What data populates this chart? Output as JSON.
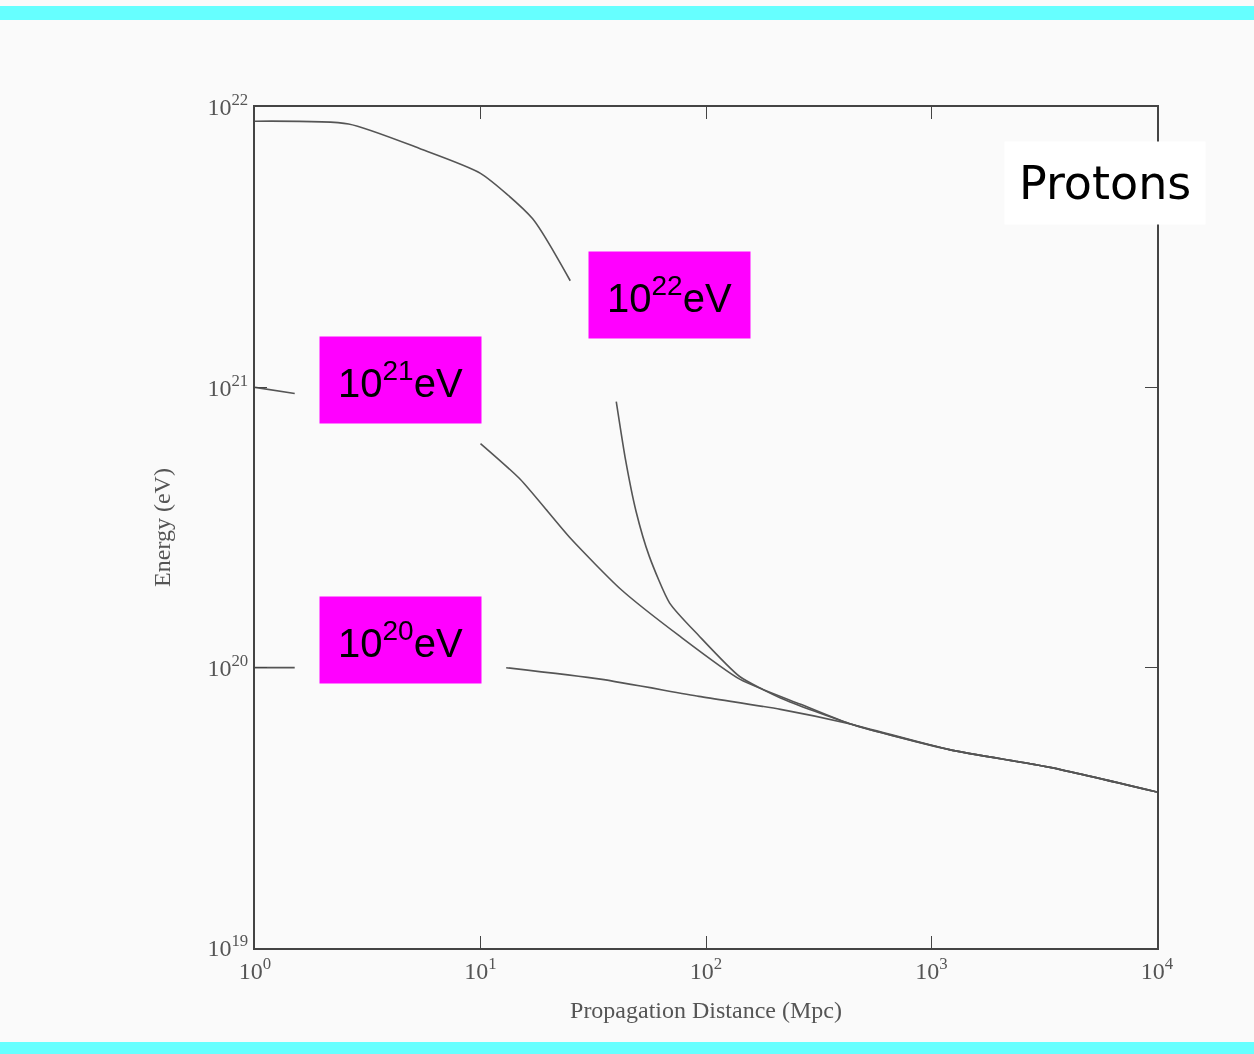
{
  "chart_data": {
    "type": "line",
    "title": "Protons",
    "xlabel": "Propagation Distance (Mpc)",
    "ylabel": "Energy (eV)",
    "log": "xy",
    "grid": false,
    "legend": false,
    "marker": "none",
    "line_style": "solid",
    "xlim": [
      1,
      10000
    ],
    "xticks": [
      {
        "value": 1,
        "label": "10$^{0}$"
      },
      {
        "value": 10,
        "label": "10$^{1}$"
      },
      {
        "value": 100,
        "label": "10$^{2}$"
      },
      {
        "value": 1000,
        "label": "10$^{3}$"
      },
      {
        "value": 10000,
        "label": "10$^{4}$"
      }
    ],
    "ylim": [
      1e+19,
      1e+22
    ],
    "yticks": [
      {
        "value": 1e+19,
        "label": "10$^{19}$"
      },
      {
        "value": 1e+20,
        "label": "10$^{20}$"
      },
      {
        "value": 1e+21,
        "label": "10$^{21}$"
      },
      {
        "value": 1e+22,
        "label": "10$^{22}$"
      }
    ],
    "series": [
      {
        "name": "10$^{22}$eV",
        "color": "#555555",
        "x": [
          1,
          2.6,
          5.4,
          10,
          17,
          25,
          34,
          40,
          44,
          49,
          56,
          69,
          93,
          141,
          214,
          437,
          1200,
          3400,
          10000
        ],
        "values": [
          8.9e+21,
          8.7e+21,
          7.1e+21,
          5.8e+21,
          4e+21,
          2.4e+21,
          null,
          8.9e+20,
          5.5e+20,
          3.6e+20,
          2.5e+20,
          1.7e+20,
          1.3e+20,
          9.3e+19,
          7.8e+19,
          6.3e+19,
          5.1e+19,
          4.4e+19,
          3.6e+19
        ]
      },
      {
        "name": "10$^{21}$eV",
        "color": "#555555",
        "x": [
          1,
          1.5,
          2.6,
          6,
          10,
          15,
          25,
          42,
          76,
          141,
          263,
          437,
          1200,
          3400,
          10000
        ],
        "values": [
          1e+21,
          9.5e+20,
          null,
          null,
          6.3e+20,
          4.7e+20,
          2.9e+20,
          1.9e+20,
          1.3e+20,
          9.1e+19,
          7.4e+19,
          6.3e+19,
          5.1e+19,
          4.4e+19,
          3.6e+19
        ]
      },
      {
        "name": "10$^{20}$eV",
        "color": "#555555",
        "x": [
          1,
          1.5,
          10,
          13,
          34,
          93,
          214,
          437,
          1200,
          3400,
          10000
        ],
        "values": [
          1e+20,
          1e+20,
          null,
          1e+20,
          9.1e+19,
          7.9e+19,
          7.1e+19,
          6.3e+19,
          5.1e+19,
          4.4e+19,
          3.6e+19
        ]
      }
    ]
  }
}
